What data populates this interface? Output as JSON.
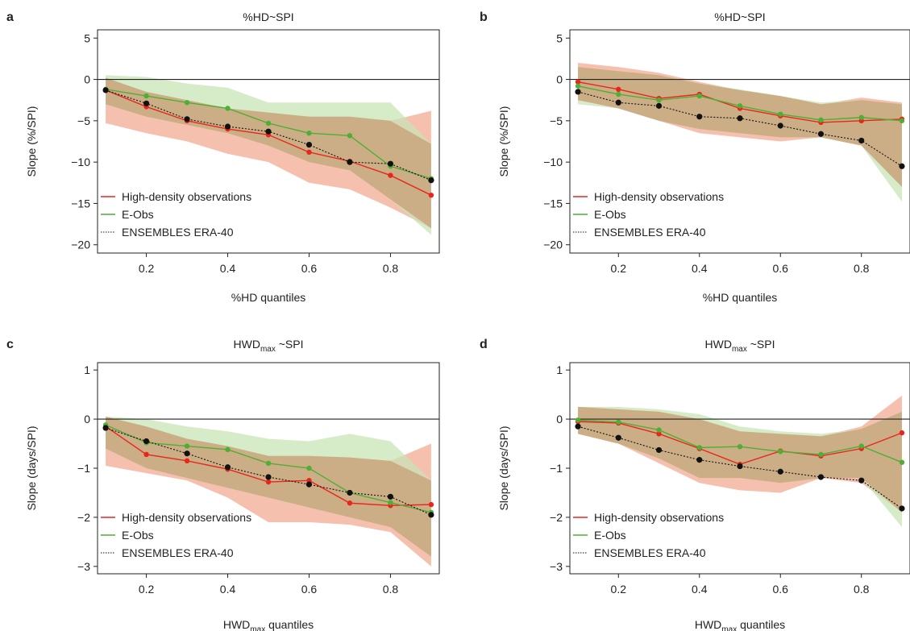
{
  "chart_data": [
    {
      "type": "line",
      "panel": "a",
      "title_main": "%HD~SPI",
      "title_sub": "",
      "title_tail": "",
      "xlabel_main": "%HD quantiles",
      "xlabel_sub": "",
      "xlabel_tail": "",
      "ylabel": "Slope (%/SPI)",
      "xlim": [
        0.08,
        0.92
      ],
      "ylim": [
        -21,
        6
      ],
      "xticks": [
        0.2,
        0.4,
        0.6,
        0.8
      ],
      "xtick_labels": [
        "0.2",
        "0.4",
        "0.6",
        "0.8"
      ],
      "yticks": [
        5,
        0,
        -5,
        -10,
        -15,
        -20
      ],
      "ytick_labels": [
        "5",
        "0",
        "−5",
        "−10",
        "−15",
        "−20"
      ],
      "x": [
        0.1,
        0.2,
        0.3,
        0.4,
        0.5,
        0.6,
        0.7,
        0.8,
        0.9
      ],
      "series": [
        {
          "name": "High-density observations",
          "color": "#e8261d",
          "dash": "",
          "values": [
            -1.3,
            -3.3,
            -5.0,
            -6.0,
            -6.7,
            -8.8,
            -9.9,
            -11.6,
            -14.0
          ],
          "band_low": [
            -5.3,
            -6.5,
            -7.5,
            -9.0,
            -10.0,
            -12.5,
            -13.3,
            -15.5,
            -18.0
          ],
          "band_high": [
            0.2,
            -1.5,
            -2.5,
            -3.5,
            -4.0,
            -4.5,
            -4.5,
            -5.0,
            -3.8
          ],
          "band_color": "#f5b5a0"
        },
        {
          "name": "E-Obs",
          "color": "#4fae35",
          "dash": "",
          "values": [
            -1.2,
            -2.0,
            -2.8,
            -3.5,
            -5.3,
            -6.5,
            -6.8,
            -10.5,
            -12.0
          ],
          "band_low": [
            -3.0,
            -4.5,
            -5.5,
            -6.5,
            -8.0,
            -10.0,
            -11.0,
            -14.5,
            -18.8
          ],
          "band_high": [
            0.5,
            0.3,
            -0.5,
            -1.0,
            -2.8,
            -2.8,
            -2.8,
            -2.8,
            -7.8
          ],
          "band_color": "#c8e4b5"
        },
        {
          "name": "ENSEMBLES ERA-40",
          "color": "#111111",
          "dash": "2,2",
          "values": [
            -1.3,
            -2.9,
            -4.8,
            -5.7,
            -6.3,
            -7.9,
            -10.0,
            -10.2,
            -12.2
          ],
          "band_low": [
            -4.0,
            -6.0,
            -7.5,
            -9.0,
            -10.0,
            -11.5,
            -13.0,
            -14.5,
            -17.5
          ],
          "band_high": [
            0.2,
            -1.0,
            -2.5,
            -3.0,
            -4.0,
            -4.5,
            -5.0,
            -5.0,
            -8.0
          ],
          "band_color": ""
        }
      ]
    },
    {
      "type": "line",
      "panel": "b",
      "title_main": "%HD~SPI",
      "title_sub": "",
      "title_tail": "",
      "xlabel_main": "%HD quantiles",
      "xlabel_sub": "",
      "xlabel_tail": "",
      "ylabel": "Slope (%/SPI)",
      "xlim": [
        0.08,
        0.92
      ],
      "ylim": [
        -21,
        6
      ],
      "xticks": [
        0.2,
        0.4,
        0.6,
        0.8
      ],
      "xtick_labels": [
        "0.2",
        "0.4",
        "0.6",
        "0.8"
      ],
      "yticks": [
        5,
        0,
        -5,
        -10,
        -15,
        -20
      ],
      "ytick_labels": [
        "5",
        "0",
        "−5",
        "−10",
        "−15",
        "−20"
      ],
      "x": [
        0.1,
        0.2,
        0.3,
        0.4,
        0.5,
        0.6,
        0.7,
        0.8,
        0.9
      ],
      "series": [
        {
          "name": "High-density observations",
          "color": "#e8261d",
          "dash": "",
          "values": [
            -0.3,
            -1.2,
            -2.3,
            -1.8,
            -3.5,
            -4.4,
            -5.2,
            -5.0,
            -4.8
          ],
          "band_low": [
            -2.5,
            -3.5,
            -5.0,
            -6.5,
            -7.0,
            -7.5,
            -7.0,
            -8.0,
            -13.0
          ],
          "band_high": [
            2.0,
            1.5,
            0.8,
            -0.3,
            -1.3,
            -2.0,
            -3.0,
            -2.2,
            -2.8
          ],
          "band_color": "#f5b5a0"
        },
        {
          "name": "E-Obs",
          "color": "#4fae35",
          "dash": "",
          "values": [
            -0.8,
            -1.8,
            -2.5,
            -2.0,
            -3.2,
            -4.2,
            -4.9,
            -4.6,
            -5.0
          ],
          "band_low": [
            -3.0,
            -3.5,
            -5.0,
            -6.0,
            -6.5,
            -7.0,
            -7.0,
            -8.0,
            -14.8
          ],
          "band_high": [
            1.5,
            1.0,
            0.5,
            -0.5,
            -1.2,
            -2.0,
            -2.8,
            -2.5,
            -3.0
          ],
          "band_color": "#c8e4b5"
        },
        {
          "name": "ENSEMBLES ERA-40",
          "color": "#111111",
          "dash": "2,2",
          "values": [
            -1.5,
            -2.8,
            -3.2,
            -4.5,
            -4.7,
            -5.6,
            -6.6,
            -7.4,
            -10.5
          ],
          "band_low": [
            -3.0,
            -4.0,
            -5.0,
            -6.5,
            -7.0,
            -7.5,
            -8.0,
            -9.0,
            -12.5
          ],
          "band_high": [
            0.5,
            -0.5,
            -1.5,
            -2.5,
            -3.0,
            -3.5,
            -4.5,
            -5.5,
            -8.5
          ],
          "band_color": ""
        }
      ]
    },
    {
      "type": "line",
      "panel": "c",
      "title_main": "HWD",
      "title_sub": "max",
      "title_tail": " ~SPI",
      "xlabel_main": "HWD",
      "xlabel_sub": "max",
      "xlabel_tail": "  quantiles",
      "ylabel": "Slope (days/SPI)",
      "xlim": [
        0.08,
        0.92
      ],
      "ylim": [
        -3.15,
        1.15
      ],
      "xticks": [
        0.2,
        0.4,
        0.6,
        0.8
      ],
      "xtick_labels": [
        "0.2",
        "0.4",
        "0.6",
        "0.8"
      ],
      "yticks": [
        1,
        0,
        -1,
        -2,
        -3
      ],
      "ytick_labels": [
        "1",
        "0",
        "−1",
        "−2",
        "−3"
      ],
      "x": [
        0.1,
        0.2,
        0.3,
        0.4,
        0.5,
        0.6,
        0.7,
        0.8,
        0.9
      ],
      "series": [
        {
          "name": "High-density observations",
          "color": "#e8261d",
          "dash": "",
          "values": [
            -0.15,
            -0.72,
            -0.85,
            -1.02,
            -1.28,
            -1.25,
            -1.71,
            -1.76,
            -1.74
          ],
          "band_low": [
            -0.95,
            -1.1,
            -1.25,
            -1.6,
            -2.1,
            -2.1,
            -2.15,
            -2.3,
            -3.0
          ],
          "band_high": [
            0.05,
            -0.15,
            -0.4,
            -0.55,
            -0.75,
            -0.75,
            -0.78,
            -0.85,
            -0.5
          ],
          "band_color": "#f5b5a0"
        },
        {
          "name": "E-Obs",
          "color": "#4fae35",
          "dash": "",
          "values": [
            -0.12,
            -0.48,
            -0.55,
            -0.62,
            -0.9,
            -1.0,
            -1.5,
            -1.7,
            -1.9
          ],
          "band_low": [
            -0.6,
            -1.0,
            -1.2,
            -1.4,
            -1.6,
            -1.8,
            -2.0,
            -2.2,
            -2.8
          ],
          "band_high": [
            0.05,
            0.0,
            -0.15,
            -0.25,
            -0.4,
            -0.45,
            -0.3,
            -0.45,
            -1.25
          ],
          "band_color": "#c8e4b5"
        },
        {
          "name": "ENSEMBLES ERA-40",
          "color": "#111111",
          "dash": "2,2",
          "values": [
            -0.18,
            -0.45,
            -0.7,
            -0.98,
            -1.18,
            -1.33,
            -1.5,
            -1.58,
            -1.95
          ],
          "band_low": [
            -0.6,
            -0.9,
            -1.2,
            -1.5,
            -1.7,
            -1.9,
            -2.1,
            -2.2,
            -2.7
          ],
          "band_high": [
            0.1,
            -0.1,
            -0.3,
            -0.5,
            -0.7,
            -0.8,
            -1.0,
            -1.1,
            -1.4
          ],
          "band_color": ""
        }
      ]
    },
    {
      "type": "line",
      "panel": "d",
      "title_main": "HWD",
      "title_sub": "max",
      "title_tail": " ~SPI",
      "xlabel_main": "HWD",
      "xlabel_sub": "max",
      "xlabel_tail": "  quantiles",
      "ylabel": "Slope (days/SPI)",
      "xlim": [
        0.08,
        0.92
      ],
      "ylim": [
        -3.15,
        1.15
      ],
      "xticks": [
        0.2,
        0.4,
        0.6,
        0.8
      ],
      "xtick_labels": [
        "0.2",
        "0.4",
        "0.6",
        "0.8"
      ],
      "yticks": [
        1,
        0,
        -1,
        -2,
        -3
      ],
      "ytick_labels": [
        "1",
        "0",
        "−1",
        "−2",
        "−3"
      ],
      "x": [
        0.1,
        0.2,
        0.3,
        0.4,
        0.5,
        0.6,
        0.7,
        0.8,
        0.9
      ],
      "series": [
        {
          "name": "High-density observations",
          "color": "#e8261d",
          "dash": "",
          "values": [
            -0.05,
            -0.08,
            -0.3,
            -0.6,
            -0.92,
            -0.65,
            -0.75,
            -0.6,
            -0.28
          ],
          "band_low": [
            -0.3,
            -0.5,
            -0.9,
            -1.3,
            -1.45,
            -1.5,
            -1.2,
            -1.3,
            -1.9
          ],
          "band_high": [
            0.25,
            0.2,
            0.15,
            0.0,
            -0.25,
            -0.3,
            -0.35,
            -0.15,
            0.48
          ],
          "band_color": "#f5b5a0"
        },
        {
          "name": "E-Obs",
          "color": "#4fae35",
          "dash": "",
          "values": [
            -0.02,
            -0.06,
            -0.22,
            -0.58,
            -0.56,
            -0.66,
            -0.72,
            -0.55,
            -0.88
          ],
          "band_low": [
            -0.3,
            -0.5,
            -0.8,
            -1.2,
            -1.2,
            -1.3,
            -1.2,
            -1.2,
            -2.2
          ],
          "band_high": [
            0.25,
            0.25,
            0.2,
            0.1,
            -0.15,
            -0.25,
            -0.3,
            -0.2,
            0.15
          ],
          "band_color": "#c8e4b5"
        },
        {
          "name": "ENSEMBLES ERA-40",
          "color": "#111111",
          "dash": "2,2",
          "values": [
            -0.15,
            -0.38,
            -0.63,
            -0.83,
            -0.96,
            -1.07,
            -1.18,
            -1.25,
            -1.82
          ],
          "band_low": [
            -0.3,
            -0.6,
            -0.9,
            -1.2,
            -1.3,
            -1.4,
            -1.4,
            -1.5,
            -2.1
          ],
          "band_high": [
            0.1,
            -0.1,
            -0.35,
            -0.5,
            -0.7,
            -0.8,
            -0.95,
            -1.0,
            -1.5
          ],
          "band_color": ""
        }
      ]
    }
  ]
}
